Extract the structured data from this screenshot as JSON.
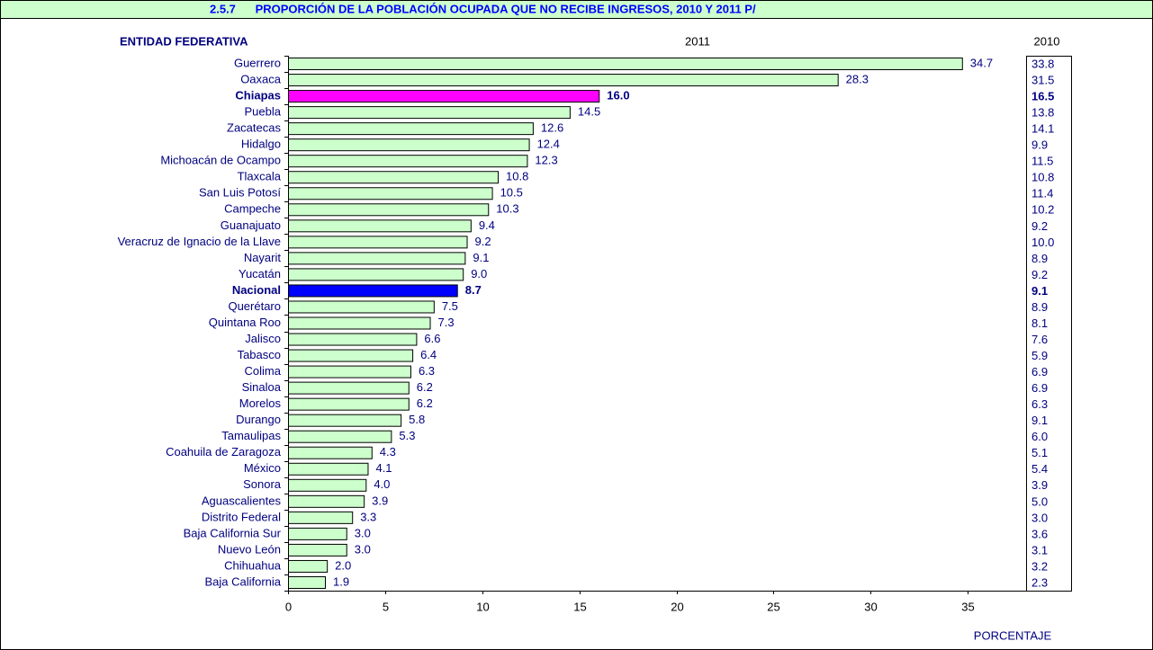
{
  "chart_data": {
    "type": "bar",
    "orientation": "horizontal",
    "title": "2.5.7      PROPORCIÓN DE LA POBLACIÓN OCUPADA QUE NO RECIBE INGRESOS, 2010 Y 2011 P/",
    "category_header": "ENTIDAD FEDERATIVA",
    "x_label": "PORCENTAJE",
    "categories": [
      "Guerrero",
      "Oaxaca",
      "Chiapas",
      "Puebla",
      "Zacatecas",
      "Hidalgo",
      "Michoacán de Ocampo",
      "Tlaxcala",
      "San Luis Potosí",
      "Campeche",
      "Guanajuato",
      "Veracruz de Ignacio de la Llave",
      "Nayarit",
      "Yucatán",
      "Nacional",
      "Querétaro",
      "Quintana Roo",
      "Jalisco",
      "Tabasco",
      "Colima",
      "Sinaloa",
      "Morelos",
      "Durango",
      "Tamaulipas",
      "Coahuila de Zaragoza",
      "México",
      "Sonora",
      "Aguascalientes",
      "Distrito Federal",
      "Baja California Sur",
      "Nuevo León",
      "Chihuahua",
      "Baja California"
    ],
    "series": [
      {
        "name": "2011",
        "color": "#ccffcc",
        "colors": [
          "#ccffcc",
          "#ccffcc",
          "#ff00ff",
          "#ccffcc",
          "#ccffcc",
          "#ccffcc",
          "#ccffcc",
          "#ccffcc",
          "#ccffcc",
          "#ccffcc",
          "#ccffcc",
          "#ccffcc",
          "#ccffcc",
          "#ccffcc",
          "#0000ff",
          "#ccffcc",
          "#ccffcc",
          "#ccffcc",
          "#ccffcc",
          "#ccffcc",
          "#ccffcc",
          "#ccffcc",
          "#ccffcc",
          "#ccffcc",
          "#ccffcc",
          "#ccffcc",
          "#ccffcc",
          "#ccffcc",
          "#ccffcc",
          "#ccffcc",
          "#ccffcc",
          "#ccffcc",
          "#ccffcc"
        ],
        "values": [
          34.7,
          28.3,
          16.0,
          14.5,
          12.6,
          12.4,
          12.3,
          10.8,
          10.5,
          10.3,
          9.4,
          9.2,
          9.1,
          9.0,
          8.7,
          7.5,
          7.3,
          6.6,
          6.4,
          6.3,
          6.2,
          6.2,
          5.8,
          5.3,
          4.3,
          4.1,
          4.0,
          3.9,
          3.3,
          3.0,
          3.0,
          2.0,
          1.9
        ],
        "value_labels": [
          "34.7",
          "28.3",
          "16.0",
          "14.5",
          "12.6",
          "12.4",
          "12.3",
          "10.8",
          "10.5",
          "10.3",
          "9.4",
          "9.2",
          "9.1",
          "9.0",
          "8.7",
          "7.5",
          "7.3",
          "6.6",
          "6.4",
          "6.3",
          "6.2",
          "6.2",
          "5.8",
          "5.3",
          "4.3",
          "4.1",
          "4.0",
          "3.9",
          "3.3",
          "3.0",
          "3.0",
          "2.0",
          "1.9"
        ]
      },
      {
        "name": "2010",
        "values": [
          33.8,
          31.5,
          16.5,
          13.8,
          14.1,
          9.9,
          11.5,
          10.8,
          11.4,
          10.2,
          9.2,
          10.0,
          8.9,
          9.2,
          9.1,
          8.9,
          8.1,
          7.6,
          5.9,
          6.9,
          6.9,
          6.3,
          9.1,
          6.0,
          5.1,
          5.4,
          3.9,
          5.0,
          3.0,
          3.6,
          3.1,
          3.2,
          2.3
        ],
        "value_labels": [
          "33.8",
          "31.5",
          "16.5",
          "13.8",
          "14.1",
          "9.9",
          "11.5",
          "10.8",
          "11.4",
          "10.2",
          "9.2",
          "10.0",
          "8.9",
          "9.2",
          "9.1",
          "8.9",
          "8.1",
          "7.6",
          "5.9",
          "6.9",
          "6.9",
          "6.3",
          "9.1",
          "6.0",
          "5.1",
          "5.4",
          "3.9",
          "5.0",
          "3.0",
          "3.6",
          "3.1",
          "3.2",
          "2.3"
        ]
      }
    ],
    "xlim": [
      0,
      38
    ],
    "xticks": [
      0,
      5,
      10,
      15,
      20,
      25,
      30,
      35
    ],
    "grid": false
  }
}
